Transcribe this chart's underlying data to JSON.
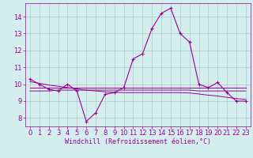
{
  "hours": [
    0,
    1,
    2,
    3,
    4,
    5,
    6,
    7,
    8,
    9,
    10,
    11,
    12,
    13,
    14,
    15,
    16,
    17,
    18,
    19,
    20,
    21,
    22,
    23
  ],
  "windchill": [
    10.3,
    10.0,
    9.7,
    9.6,
    10.0,
    9.6,
    7.8,
    8.3,
    9.4,
    9.5,
    9.8,
    11.5,
    11.8,
    13.3,
    14.2,
    14.5,
    13.0,
    12.5,
    10.0,
    9.8,
    10.1,
    9.5,
    9.0,
    9.0
  ],
  "avg_line1": [
    9.8,
    9.8,
    9.8,
    9.8,
    9.8,
    9.8,
    9.8,
    9.8,
    9.8,
    9.8,
    9.8,
    9.8,
    9.8,
    9.8,
    9.8,
    9.8,
    9.8,
    9.8,
    9.8,
    9.8,
    9.8,
    9.8,
    9.8,
    9.8
  ],
  "avg_line2": [
    9.6,
    9.6,
    9.6,
    9.65,
    9.65,
    9.65,
    9.65,
    9.65,
    9.65,
    9.65,
    9.65,
    9.65,
    9.65,
    9.65,
    9.65,
    9.65,
    9.65,
    9.65,
    9.6,
    9.6,
    9.6,
    9.6,
    9.6,
    9.6
  ],
  "trend_line": [
    10.15,
    10.05,
    9.95,
    9.88,
    9.8,
    9.72,
    9.65,
    9.6,
    9.55,
    9.52,
    9.5,
    9.5,
    9.5,
    9.5,
    9.5,
    9.5,
    9.5,
    9.48,
    9.42,
    9.35,
    9.3,
    9.22,
    9.15,
    9.1
  ],
  "line_color": "#990099",
  "bg_color": "#d4eeee",
  "grid_color": "#b0c8c8",
  "ylabel_vals": [
    8,
    9,
    10,
    11,
    12,
    13,
    14
  ],
  "ylim": [
    7.5,
    14.8
  ],
  "xlim": [
    -0.5,
    23.5
  ],
  "xlabel": "Windchill (Refroidissement éolien,°C)",
  "xlabel_fontsize": 6.0,
  "tick_fontsize": 6.0
}
